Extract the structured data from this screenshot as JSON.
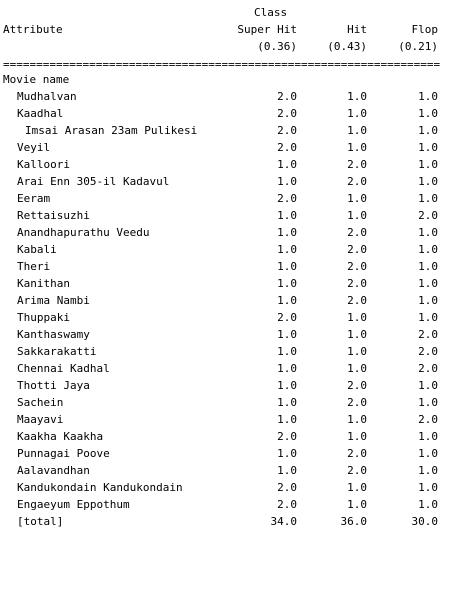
{
  "header": {
    "class_label": "Class",
    "attribute_label": "Attribute",
    "columns": [
      {
        "name": "Super Hit",
        "prior": "(0.36)"
      },
      {
        "name": "Hit",
        "prior": "(0.43)"
      },
      {
        "name": "Flop",
        "prior": "(0.21)"
      }
    ],
    "rule": "==========================================================================="
  },
  "section_label": "Movie name",
  "rows": [
    {
      "name": "Mudhalvan",
      "values": [
        "2.0",
        "1.0",
        "1.0"
      ]
    },
    {
      "name": "Kaadhal",
      "values": [
        "2.0",
        "1.0",
        "1.0"
      ]
    },
    {
      "name": "Imsai Arasan 23am Pulikesi",
      "values": [
        "2.0",
        "1.0",
        "1.0"
      ]
    },
    {
      "name": "Veyil",
      "values": [
        "2.0",
        "1.0",
        "1.0"
      ]
    },
    {
      "name": "Kalloori",
      "values": [
        "1.0",
        "2.0",
        "1.0"
      ]
    },
    {
      "name": "Arai Enn 305-il Kadavul",
      "values": [
        "1.0",
        "2.0",
        "1.0"
      ]
    },
    {
      "name": "Eeram",
      "values": [
        "2.0",
        "1.0",
        "1.0"
      ]
    },
    {
      "name": "Rettaisuzhi",
      "values": [
        "1.0",
        "1.0",
        "2.0"
      ]
    },
    {
      "name": "Anandhapurathu Veedu",
      "values": [
        "1.0",
        "2.0",
        "1.0"
      ]
    },
    {
      "name": "Kabali",
      "values": [
        "1.0",
        "2.0",
        "1.0"
      ]
    },
    {
      "name": "Theri",
      "values": [
        "1.0",
        "2.0",
        "1.0"
      ]
    },
    {
      "name": "Kanithan",
      "values": [
        "1.0",
        "2.0",
        "1.0"
      ]
    },
    {
      "name": "Arima Nambi",
      "values": [
        "1.0",
        "2.0",
        "1.0"
      ]
    },
    {
      "name": "Thuppaki",
      "values": [
        "2.0",
        "1.0",
        "1.0"
      ]
    },
    {
      "name": "Kanthaswamy",
      "values": [
        "1.0",
        "1.0",
        "2.0"
      ]
    },
    {
      "name": "Sakkarakatti",
      "values": [
        "1.0",
        "1.0",
        "2.0"
      ]
    },
    {
      "name": "Chennai Kadhal",
      "values": [
        "1.0",
        "1.0",
        "2.0"
      ]
    },
    {
      "name": "Thotti Jaya",
      "values": [
        "1.0",
        "2.0",
        "1.0"
      ]
    },
    {
      "name": "Sachein",
      "values": [
        "1.0",
        "2.0",
        "1.0"
      ]
    },
    {
      "name": "Maayavi",
      "values": [
        "1.0",
        "1.0",
        "2.0"
      ]
    },
    {
      "name": "Kaakha Kaakha",
      "values": [
        "2.0",
        "1.0",
        "1.0"
      ]
    },
    {
      "name": "Punnagai Poove",
      "values": [
        "1.0",
        "2.0",
        "1.0"
      ]
    },
    {
      "name": "Aalavandhan",
      "values": [
        "1.0",
        "2.0",
        "1.0"
      ]
    },
    {
      "name": "Kandukondain Kandukondain",
      "values": [
        "2.0",
        "1.0",
        "1.0"
      ]
    },
    {
      "name": "Engaeyum Eppothum",
      "values": [
        "2.0",
        "1.0",
        "1.0"
      ]
    }
  ],
  "total": {
    "name": "[total]",
    "values": [
      "34.0",
      "36.0",
      "30.0"
    ]
  }
}
